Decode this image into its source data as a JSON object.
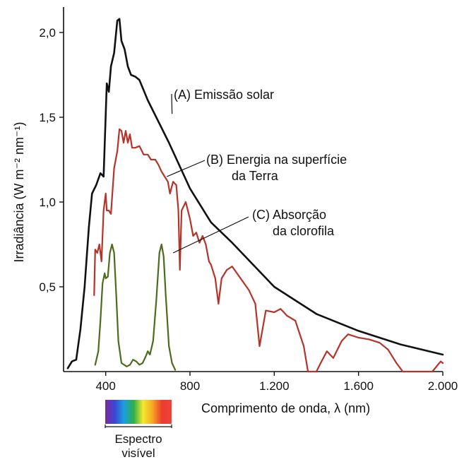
{
  "chart_data": {
    "type": "line",
    "xlabel": "Comprimento de onda, λ (nm)",
    "ylabel": "Irradiância (W m⁻² nm⁻¹)",
    "xlim": [
      200,
      2000
    ],
    "ylim": [
      0,
      2.15
    ],
    "x_ticks": [
      {
        "value": 400,
        "label": "400"
      },
      {
        "value": 800,
        "label": "800"
      },
      {
        "value": 1200,
        "label": "1.200"
      },
      {
        "value": 1600,
        "label": "1.600"
      },
      {
        "value": 2000,
        "label": "2.000"
      }
    ],
    "y_ticks": [
      {
        "value": 0.5,
        "label": "0,5"
      },
      {
        "value": 1.0,
        "label": "1,0"
      },
      {
        "value": 1.5,
        "label": "1,5"
      },
      {
        "value": 2.0,
        "label": "2,0"
      }
    ],
    "grid": false,
    "series": [
      {
        "name": "(A) Emissão solar",
        "color": "#111111",
        "points": [
          [
            220,
            0.02
          ],
          [
            240,
            0.06
          ],
          [
            260,
            0.07
          ],
          [
            280,
            0.25
          ],
          [
            300,
            0.5
          ],
          [
            320,
            0.85
          ],
          [
            335,
            1.05
          ],
          [
            355,
            1.1
          ],
          [
            375,
            1.17
          ],
          [
            390,
            1.15
          ],
          [
            405,
            1.7
          ],
          [
            415,
            1.65
          ],
          [
            425,
            1.8
          ],
          [
            440,
            1.88
          ],
          [
            455,
            2.07
          ],
          [
            465,
            2.08
          ],
          [
            475,
            1.95
          ],
          [
            490,
            1.9
          ],
          [
            505,
            1.8
          ],
          [
            520,
            1.75
          ],
          [
            540,
            1.74
          ],
          [
            560,
            1.72
          ],
          [
            600,
            1.6
          ],
          [
            700,
            1.35
          ],
          [
            800,
            1.08
          ],
          [
            900,
            0.88
          ],
          [
            1000,
            0.76
          ],
          [
            1200,
            0.5
          ],
          [
            1400,
            0.34
          ],
          [
            1600,
            0.24
          ],
          [
            1800,
            0.16
          ],
          [
            2000,
            0.1
          ]
        ]
      },
      {
        "name": "(B) Energia na superfície da Terra",
        "color": "#b5342a",
        "points": [
          [
            345,
            0.45
          ],
          [
            350,
            0.72
          ],
          [
            360,
            0.7
          ],
          [
            370,
            0.75
          ],
          [
            380,
            0.65
          ],
          [
            390,
            0.95
          ],
          [
            400,
            1.05
          ],
          [
            405,
            0.95
          ],
          [
            415,
            0.95
          ],
          [
            425,
            0.93
          ],
          [
            440,
            1.2
          ],
          [
            455,
            1.3
          ],
          [
            465,
            1.43
          ],
          [
            475,
            1.42
          ],
          [
            485,
            1.35
          ],
          [
            495,
            1.42
          ],
          [
            505,
            1.35
          ],
          [
            515,
            1.4
          ],
          [
            525,
            1.32
          ],
          [
            540,
            1.32
          ],
          [
            560,
            1.33
          ],
          [
            580,
            1.28
          ],
          [
            600,
            1.28
          ],
          [
            615,
            1.25
          ],
          [
            635,
            1.25
          ],
          [
            650,
            1.22
          ],
          [
            665,
            1.18
          ],
          [
            680,
            1.15
          ],
          [
            695,
            1.12
          ],
          [
            705,
            1.05
          ],
          [
            720,
            1.12
          ],
          [
            735,
            1.1
          ],
          [
            745,
            0.95
          ],
          [
            752,
            0.6
          ],
          [
            760,
            0.95
          ],
          [
            780,
            1.0
          ],
          [
            800,
            0.9
          ],
          [
            815,
            0.8
          ],
          [
            830,
            0.82
          ],
          [
            845,
            0.76
          ],
          [
            860,
            0.8
          ],
          [
            875,
            0.75
          ],
          [
            890,
            0.65
          ],
          [
            900,
            0.63
          ],
          [
            920,
            0.55
          ],
          [
            935,
            0.4
          ],
          [
            950,
            0.55
          ],
          [
            975,
            0.6
          ],
          [
            1000,
            0.62
          ],
          [
            1040,
            0.55
          ],
          [
            1080,
            0.48
          ],
          [
            1110,
            0.4
          ],
          [
            1130,
            0.15
          ],
          [
            1160,
            0.36
          ],
          [
            1200,
            0.35
          ],
          [
            1230,
            0.37
          ],
          [
            1260,
            0.33
          ],
          [
            1300,
            0.3
          ],
          [
            1340,
            0.15
          ],
          [
            1360,
            0.0
          ],
          [
            1400,
            0.0
          ],
          [
            1420,
            0.05
          ],
          [
            1450,
            0.12
          ],
          [
            1480,
            0.08
          ],
          [
            1520,
            0.18
          ],
          [
            1550,
            0.22
          ],
          [
            1600,
            0.2
          ],
          [
            1650,
            0.19
          ],
          [
            1700,
            0.17
          ],
          [
            1740,
            0.13
          ],
          [
            1780,
            0.05
          ],
          [
            1810,
            0.0
          ],
          [
            1950,
            0.0
          ],
          [
            1990,
            0.06
          ],
          [
            2000,
            0.05
          ]
        ]
      },
      {
        "name": "(C) Absorção da clorofila",
        "color": "#4d6b1e",
        "points": [
          [
            350,
            0.04
          ],
          [
            365,
            0.12
          ],
          [
            375,
            0.3
          ],
          [
            385,
            0.52
          ],
          [
            395,
            0.58
          ],
          [
            400,
            0.55
          ],
          [
            410,
            0.56
          ],
          [
            420,
            0.7
          ],
          [
            430,
            0.75
          ],
          [
            440,
            0.7
          ],
          [
            450,
            0.45
          ],
          [
            460,
            0.18
          ],
          [
            475,
            0.05
          ],
          [
            500,
            0.03
          ],
          [
            515,
            0.04
          ],
          [
            530,
            0.07
          ],
          [
            545,
            0.06
          ],
          [
            560,
            0.04
          ],
          [
            575,
            0.05
          ],
          [
            590,
            0.09
          ],
          [
            600,
            0.12
          ],
          [
            610,
            0.1
          ],
          [
            625,
            0.18
          ],
          [
            640,
            0.42
          ],
          [
            655,
            0.7
          ],
          [
            665,
            0.75
          ],
          [
            675,
            0.68
          ],
          [
            685,
            0.45
          ],
          [
            700,
            0.15
          ],
          [
            715,
            0.05
          ],
          [
            730,
            0.01
          ]
        ]
      }
    ],
    "annotations": [
      {
        "id": "A",
        "lines": [
          "(A) Emissão solar"
        ],
        "points_to": [
          715,
          1.52
        ]
      },
      {
        "id": "B",
        "lines": [
          "(B) Energia na superfície",
          "da Terra"
        ],
        "points_to": [
          690,
          1.15
        ]
      },
      {
        "id": "C",
        "lines": [
          "(C) Absorção",
          "da clorofila"
        ],
        "points_to": [
          720,
          0.7
        ]
      }
    ],
    "visible_spectrum": {
      "label_lines": [
        "Espectro",
        "visível"
      ],
      "range_nm": [
        400,
        700
      ],
      "colors": [
        "#7a2b9c",
        "#3b47d6",
        "#1aa0dc",
        "#2fae48",
        "#f3ea2c",
        "#f6a524",
        "#ee3a30",
        "#e9463b"
      ]
    }
  }
}
